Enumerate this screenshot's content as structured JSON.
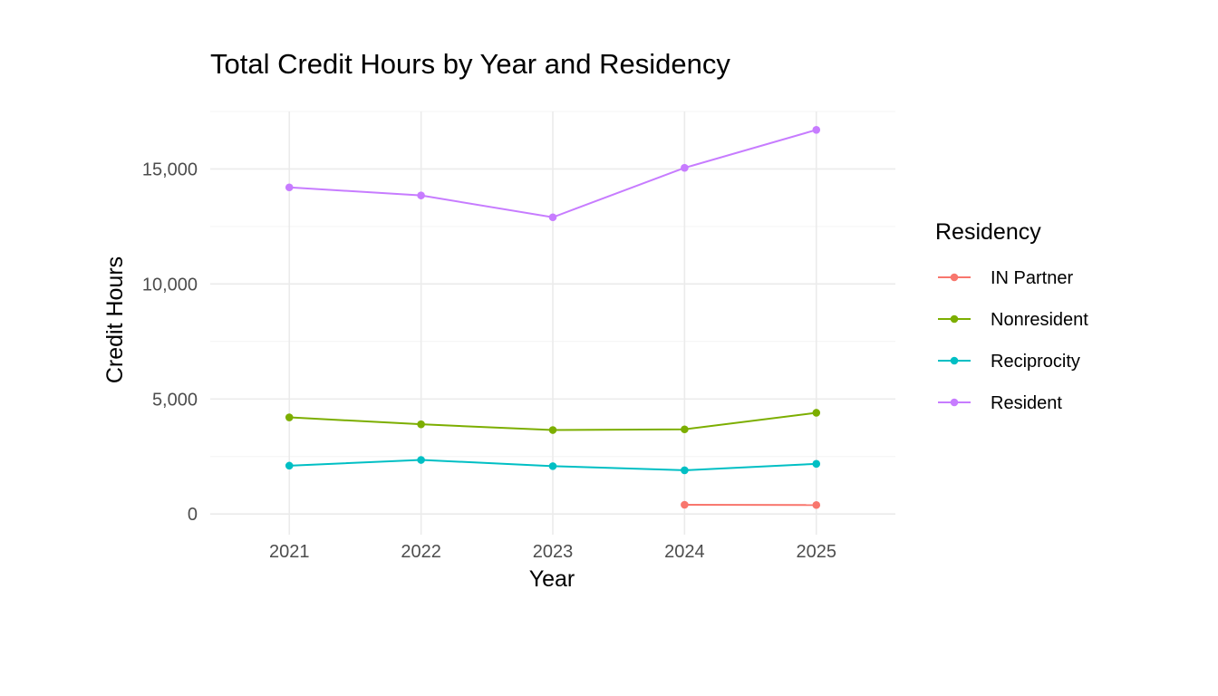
{
  "chart_data": {
    "type": "line",
    "title": "Total Credit Hours by Year and Residency",
    "xlabel": "Year",
    "ylabel": "Credit Hours",
    "x": [
      2021,
      2022,
      2023,
      2024,
      2025
    ],
    "xticks": [
      "2021",
      "2022",
      "2023",
      "2024",
      "2025"
    ],
    "yticks": [
      0,
      5000,
      10000,
      15000
    ],
    "yticklabels": [
      "0",
      "5,000",
      "10,000",
      "15,000"
    ],
    "xlim": [
      2020.4,
      2025.6
    ],
    "ylim": [
      -900,
      17500
    ],
    "grid": true,
    "legend": {
      "title": "Residency",
      "position": "right"
    },
    "series": [
      {
        "name": "IN Partner",
        "color": "#F8766D",
        "values": [
          null,
          null,
          null,
          400,
          390
        ]
      },
      {
        "name": "Nonresident",
        "color": "#7CAE00",
        "values": [
          4200,
          3900,
          3650,
          3680,
          4400
        ]
      },
      {
        "name": "Reciprocity",
        "color": "#00BFC4",
        "values": [
          2100,
          2350,
          2080,
          1900,
          2180
        ]
      },
      {
        "name": "Resident",
        "color": "#C77CFF",
        "values": [
          14200,
          13850,
          12900,
          15050,
          16700
        ]
      }
    ]
  }
}
